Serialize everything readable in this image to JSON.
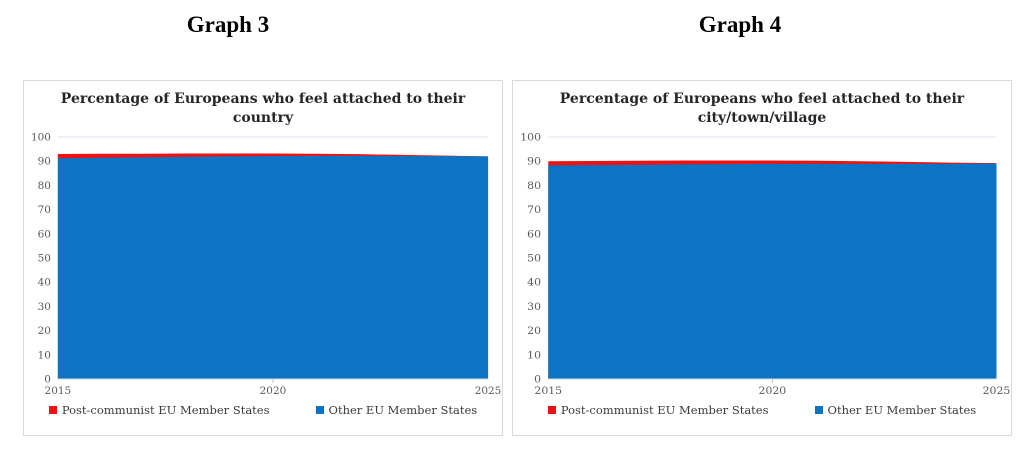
{
  "headings": [
    "Graph 3",
    "Graph 4"
  ],
  "colors": {
    "gridline": "#dce6f1",
    "axis_line": "#d9d9d9",
    "tick_mark": "#bfbfbf",
    "tick_label": "#595959",
    "title_text": "#262626",
    "legend_text": "#3b3b3b",
    "panel_border": "#d9d9d9",
    "background": "#ffffff"
  },
  "chart_data": [
    {
      "type": "area",
      "title": "Percentage of Europeans who feel attached to their country",
      "stacking": "overlay",
      "x": [
        2015,
        2016,
        2017,
        2018,
        2019,
        2020,
        2021,
        2022,
        2023,
        2024,
        2025
      ],
      "xticks": [
        2015,
        2020,
        2025
      ],
      "ylim": [
        0,
        100
      ],
      "yticks": [
        0,
        10,
        20,
        30,
        40,
        50,
        60,
        70,
        80,
        90,
        100
      ],
      "gridlines": [
        100
      ],
      "legend_position": "bottom",
      "series": [
        {
          "name": "Post-communist EU Member States",
          "color": "#ee1312",
          "values": [
            93.0,
            93.1,
            93.1,
            93.2,
            93.2,
            93.2,
            93.1,
            92.9,
            92.6,
            92.3,
            92.0
          ]
        },
        {
          "name": "Other EU Member States",
          "color": "#0b74c4",
          "values": [
            91.2,
            91.4,
            91.6,
            91.8,
            92.0,
            92.1,
            92.2,
            92.2,
            92.1,
            92.1,
            92.0
          ]
        }
      ]
    },
    {
      "type": "area",
      "title": "Percentage of Europeans who feel attached to their city/town/village",
      "stacking": "overlay",
      "x": [
        2015,
        2016,
        2017,
        2018,
        2019,
        2020,
        2021,
        2022,
        2023,
        2024,
        2025
      ],
      "xticks": [
        2015,
        2020,
        2025
      ],
      "ylim": [
        0,
        100
      ],
      "yticks": [
        0,
        10,
        20,
        30,
        40,
        50,
        60,
        70,
        80,
        90,
        100
      ],
      "gridlines": [
        100
      ],
      "legend_position": "bottom",
      "series": [
        {
          "name": "Post-communist EU Member States",
          "color": "#ee1312",
          "values": [
            90.0,
            90.1,
            90.2,
            90.3,
            90.3,
            90.3,
            90.2,
            90.0,
            89.7,
            89.4,
            89.2
          ]
        },
        {
          "name": "Other EU Member States",
          "color": "#0b74c4",
          "values": [
            88.3,
            88.4,
            88.5,
            88.7,
            88.8,
            88.9,
            88.9,
            88.9,
            88.9,
            88.9,
            89.0
          ]
        }
      ]
    }
  ]
}
